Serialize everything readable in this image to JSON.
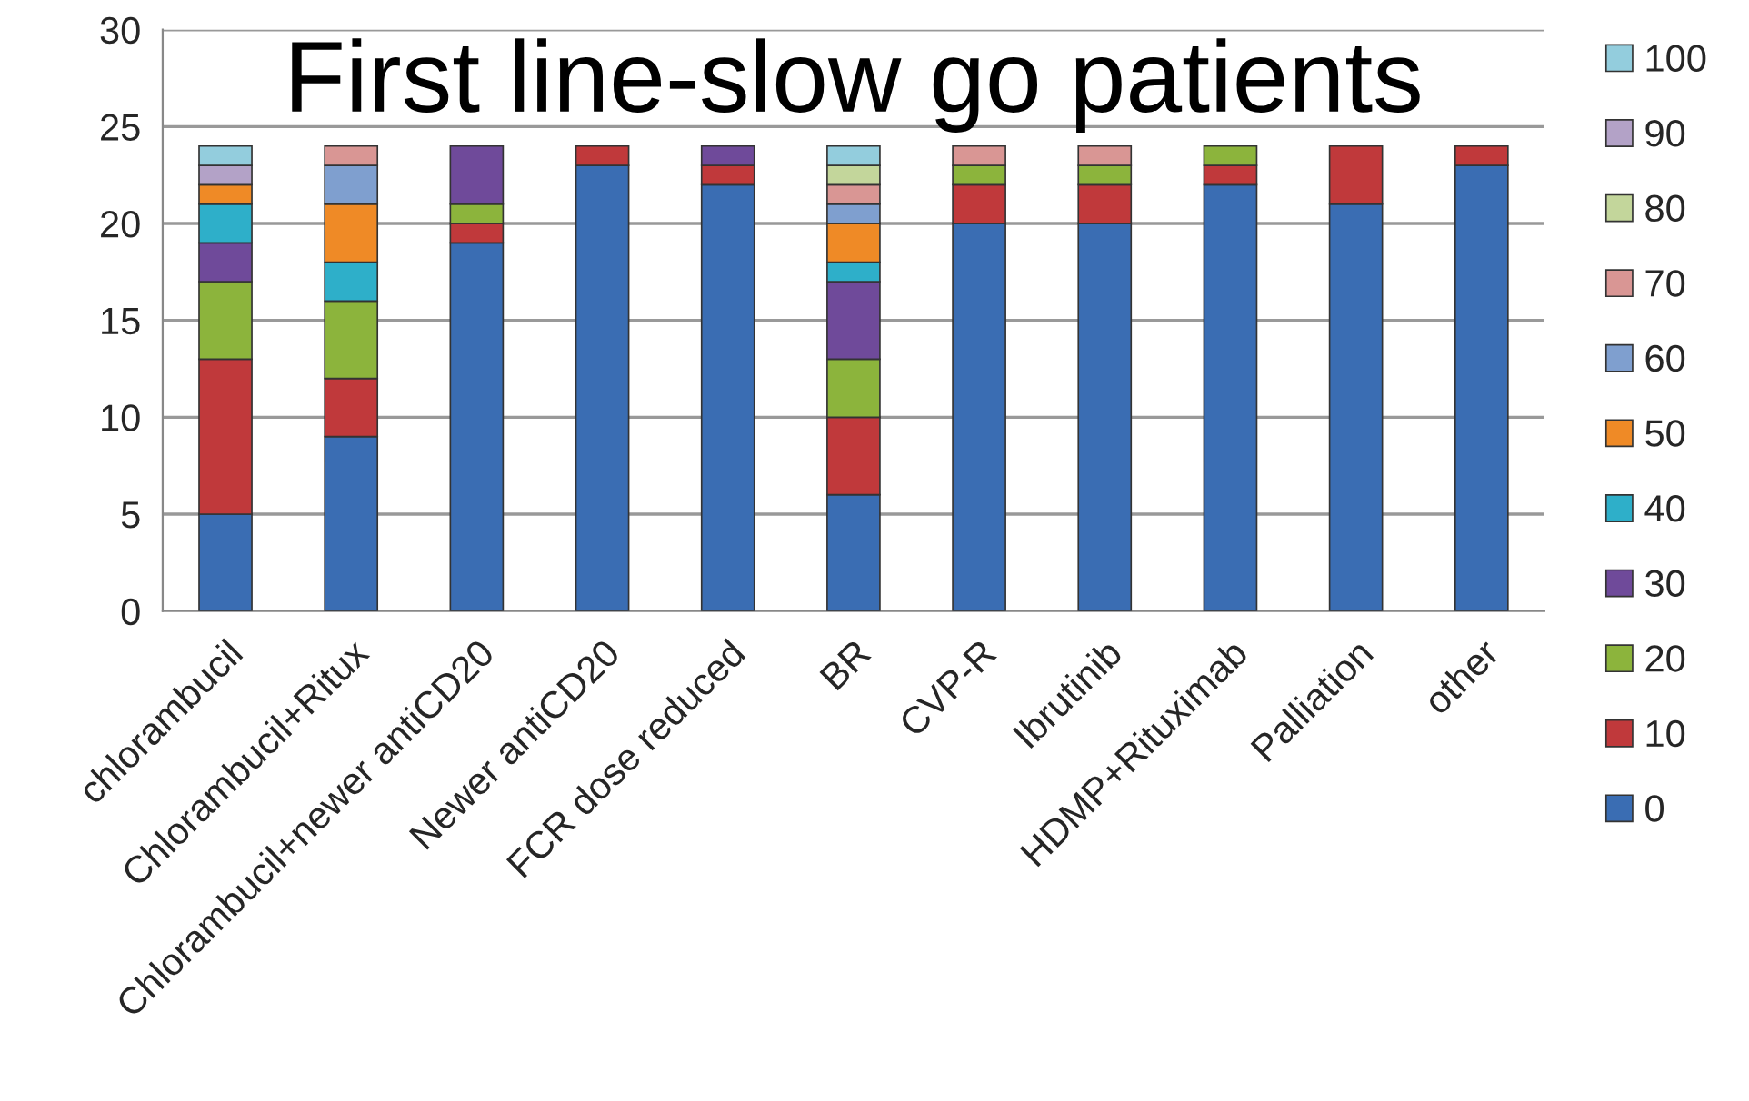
{
  "chart_data": {
    "type": "bar",
    "title": "First line-slow go patients",
    "stacked": true,
    "categories": [
      "chlorambucil",
      "Chlorambucil+Ritux",
      "Chlorambucil+newer antiCD20",
      "Newer antiCD20",
      "FCR dose reduced",
      "BR",
      "CVP-R",
      "Ibrutinib",
      "HDMP+Rituximab",
      "Palliation",
      "other"
    ],
    "series": [
      {
        "name": "0",
        "color": "#3a6db3",
        "values": [
          5,
          9,
          19,
          23,
          22,
          6,
          20,
          20,
          22,
          21,
          23
        ]
      },
      {
        "name": "10",
        "color": "#c0393b",
        "values": [
          8,
          3,
          1,
          1,
          1,
          4,
          2,
          2,
          1,
          3,
          1
        ]
      },
      {
        "name": "20",
        "color": "#8cb43c",
        "values": [
          4,
          4,
          1,
          0,
          0,
          3,
          1,
          1,
          1,
          0,
          0
        ]
      },
      {
        "name": "30",
        "color": "#6f4a9a",
        "values": [
          2,
          0,
          3,
          0,
          1,
          4,
          0,
          0,
          0,
          0,
          0
        ]
      },
      {
        "name": "40",
        "color": "#2eafc9",
        "values": [
          2,
          2,
          0,
          0,
          0,
          1,
          0,
          0,
          0,
          0,
          0
        ]
      },
      {
        "name": "50",
        "color": "#ef8a26",
        "values": [
          1,
          3,
          0,
          0,
          0,
          2,
          0,
          0,
          0,
          0,
          0
        ]
      },
      {
        "name": "60",
        "color": "#7f9fcf",
        "values": [
          0,
          2,
          0,
          0,
          0,
          1,
          0,
          0,
          0,
          0,
          0
        ]
      },
      {
        "name": "70",
        "color": "#d99694",
        "values": [
          0,
          1,
          0,
          0,
          0,
          1,
          1,
          1,
          0,
          0,
          0
        ]
      },
      {
        "name": "80",
        "color": "#c3d69b",
        "values": [
          0,
          0,
          0,
          0,
          0,
          1,
          0,
          0,
          0,
          0,
          0
        ]
      },
      {
        "name": "90",
        "color": "#b3a2c7",
        "values": [
          1,
          0,
          0,
          0,
          0,
          0,
          0,
          0,
          0,
          0,
          0
        ]
      },
      {
        "name": "100",
        "color": "#93cddd",
        "values": [
          1,
          0,
          0,
          0,
          0,
          1,
          0,
          0,
          0,
          0,
          0
        ]
      }
    ],
    "ylim": [
      0,
      30
    ],
    "yticks": [
      0,
      5,
      10,
      15,
      20,
      25,
      30
    ],
    "grid": "y",
    "legend": "right"
  }
}
